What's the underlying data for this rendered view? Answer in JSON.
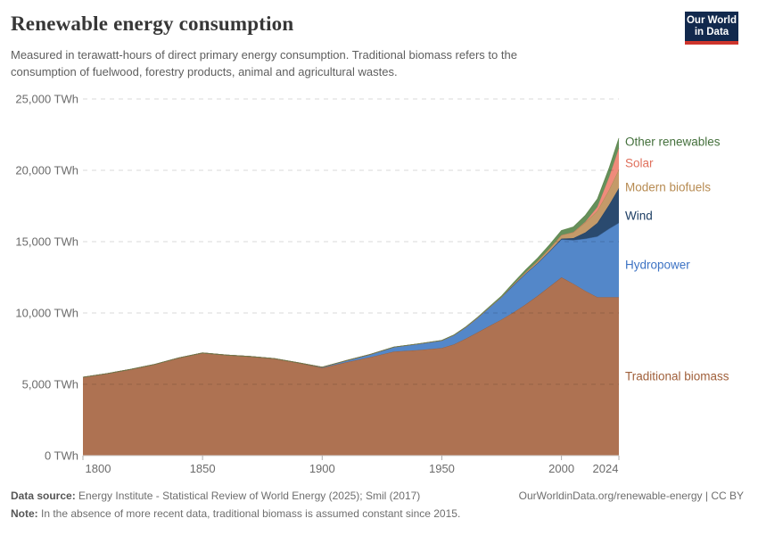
{
  "header": {
    "title": "Renewable energy consumption",
    "subtitle_line1": "Measured in terawatt-hours of direct primary energy consumption. Traditional biomass refers to the",
    "subtitle_line2": "consumption of fuelwood, forestry products, animal and agricultural wastes.",
    "logo": {
      "line1": "Our World",
      "line2": "in Data",
      "bg_color": "#12294D",
      "accent_color": "#CE352C"
    }
  },
  "chart_data": {
    "type": "area",
    "stacked": true,
    "unit": "TWh",
    "xlim": [
      1800,
      2024
    ],
    "ylim": [
      0,
      25000
    ],
    "grid": "dashed-horizontal",
    "legend_position": "right-of-plot-direct-labels",
    "x": [
      1800,
      1810,
      1820,
      1830,
      1840,
      1850,
      1860,
      1870,
      1880,
      1890,
      1900,
      1910,
      1920,
      1930,
      1940,
      1950,
      1955,
      1960,
      1965,
      1970,
      1975,
      1980,
      1985,
      1990,
      1995,
      2000,
      2005,
      2010,
      2015,
      2020,
      2024
    ],
    "series": [
      {
        "id": "traditional-biomass",
        "name": "Traditional biomass",
        "fill": "#AE7252",
        "stroke": "#7D5138",
        "label_color": "#A0603B",
        "label_y": 422,
        "values": [
          5500,
          5750,
          6050,
          6400,
          6850,
          7200,
          7050,
          6950,
          6800,
          6500,
          6150,
          6550,
          6900,
          7300,
          7400,
          7550,
          7800,
          8200,
          8650,
          9100,
          9550,
          10050,
          10600,
          11200,
          11850,
          12500,
          12050,
          11550,
          11111,
          11111,
          11111
        ]
      },
      {
        "id": "hydropower",
        "name": "Hydropower",
        "fill": "#5387C9",
        "stroke": "#3A6AA8",
        "label_color": "#3D73C4",
        "label_y": 297,
        "values": [
          0,
          0,
          0,
          0,
          0,
          0,
          0,
          0,
          3,
          12,
          50,
          110,
          190,
          310,
          430,
          520,
          640,
          800,
          1020,
          1300,
          1570,
          1900,
          2150,
          2280,
          2450,
          2650,
          3050,
          3650,
          4250,
          4800,
          5200
        ]
      },
      {
        "id": "wind",
        "name": "Wind",
        "fill": "#2A4A6F",
        "stroke": "#1C3A58",
        "label_color": "#1C3D63",
        "label_y": 242,
        "values": [
          0,
          0,
          0,
          0,
          0,
          0,
          0,
          0,
          0,
          0,
          0,
          0,
          0,
          0,
          0,
          0,
          0,
          0,
          0,
          0,
          0,
          5,
          10,
          15,
          30,
          60,
          150,
          450,
          950,
          1700,
          2450
        ]
      },
      {
        "id": "modern-biofuels",
        "name": "Modern biofuels",
        "fill": "#C49A69",
        "stroke": "#A07E45",
        "label_color": "#B78B52",
        "label_y": 210,
        "values": [
          0,
          0,
          0,
          0,
          0,
          0,
          0,
          0,
          0,
          0,
          0,
          0,
          0,
          0,
          0,
          0,
          0,
          0,
          0,
          0,
          0,
          60,
          90,
          130,
          180,
          250,
          400,
          700,
          850,
          1050,
          1300
        ]
      },
      {
        "id": "solar",
        "name": "Solar",
        "fill": "#EF8B7B",
        "stroke": "#D97562",
        "label_color": "#E0705C",
        "label_y": 183,
        "values": [
          0,
          0,
          0,
          0,
          0,
          0,
          0,
          0,
          0,
          0,
          0,
          0,
          0,
          0,
          0,
          0,
          0,
          0,
          0,
          0,
          0,
          0,
          0,
          0,
          0,
          0,
          15,
          40,
          270,
          900,
          1500
        ]
      },
      {
        "id": "other-renewables",
        "name": "Other renewables",
        "fill": "#66905B",
        "stroke": "#4F7A3C",
        "label_color": "#44703C",
        "label_y": 159,
        "values": [
          0,
          0,
          0,
          0,
          0,
          0,
          0,
          0,
          0,
          0,
          2,
          3,
          4,
          6,
          8,
          15,
          18,
          25,
          35,
          55,
          80,
          120,
          170,
          220,
          270,
          320,
          370,
          460,
          560,
          640,
          700
        ]
      }
    ],
    "yticks": [
      {
        "value": 0,
        "label": "0 TWh"
      },
      {
        "value": 5000,
        "label": "5,000 TWh"
      },
      {
        "value": 10000,
        "label": "10,000 TWh"
      },
      {
        "value": 15000,
        "label": "15,000 TWh"
      },
      {
        "value": 20000,
        "label": "20,000 TWh"
      },
      {
        "value": 25000,
        "label": "25,000 TWh"
      }
    ],
    "xticks": [
      {
        "value": 1800,
        "label": "1800"
      },
      {
        "value": 1850,
        "label": "1850"
      },
      {
        "value": 1900,
        "label": "1900"
      },
      {
        "value": 1950,
        "label": "1950"
      },
      {
        "value": 2000,
        "label": "2000"
      },
      {
        "value": 2024,
        "label": "2024"
      }
    ],
    "colors": {
      "grid": "rgba(0,0,0,0.15)",
      "axis_line": "#d2d2d2",
      "tick_mark": "#adadad",
      "tick_text": "#6b6b6b"
    }
  },
  "footer": {
    "datasource_label": "Data source:",
    "datasource_text": " Energy Institute - Statistical Review of World Energy (2025); Smil (2017)",
    "rights_text": "OurWorldinData.org/renewable-energy | CC BY",
    "note_label": "Note:",
    "note_text": " In the absence of more recent data, traditional biomass is assumed constant since 2015."
  }
}
